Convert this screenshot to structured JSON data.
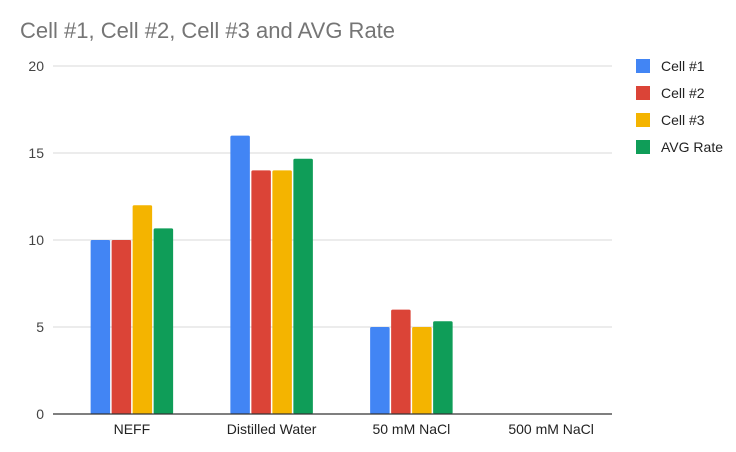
{
  "chart_data": {
    "type": "bar",
    "title": "Cell #1, Cell #2, Cell #3 and AVG Rate",
    "xlabel": "",
    "ylabel": "",
    "categories": [
      "NEFF",
      "Distilled Water",
      "50 mM NaCl",
      "500 mM NaCl"
    ],
    "series": [
      {
        "name": "Cell #1",
        "color": "#4285f4",
        "values": [
          10,
          16,
          5,
          0
        ]
      },
      {
        "name": "Cell #2",
        "color": "#db4437",
        "values": [
          10,
          14,
          6,
          0
        ]
      },
      {
        "name": "Cell #3",
        "color": "#f4b400",
        "values": [
          12,
          14,
          5,
          0
        ]
      },
      {
        "name": "AVG Rate",
        "color": "#0f9d58",
        "values": [
          10.67,
          14.67,
          5.33,
          0
        ]
      }
    ],
    "ylim": [
      0,
      20
    ],
    "yticks": [
      0,
      5,
      10,
      15,
      20
    ],
    "grid": true,
    "legend_position": "right"
  }
}
